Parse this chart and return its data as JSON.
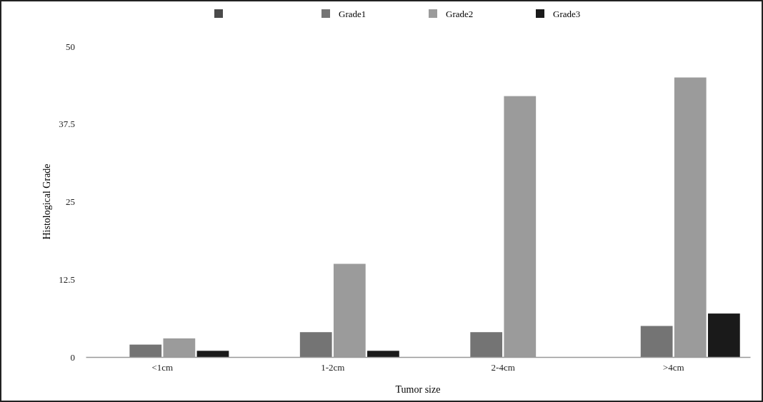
{
  "chart_data": {
    "type": "bar",
    "xlabel": "Tumor size",
    "ylabel": "Histological Grade",
    "categories": [
      "<1cm",
      "1-2cm",
      "2-4cm",
      ">4cm"
    ],
    "series": [
      {
        "color": "#4a4a4a",
        "values": [
          null,
          null,
          null,
          null
        ]
      },
      {
        "name": "Grade1",
        "color": "#747474",
        "values": [
          2,
          4,
          4,
          5
        ]
      },
      {
        "name": "Grade2",
        "color": "#9b9b9b",
        "values": [
          3,
          15,
          42,
          45
        ]
      },
      {
        "name": "Grade3",
        "color": "#1a1a1a",
        "values": [
          1,
          1,
          null,
          7
        ]
      }
    ],
    "ylim": [
      0,
      50
    ],
    "yticks": [
      0,
      12.5,
      25,
      37.5,
      50
    ],
    "grid": false,
    "legend": "top"
  }
}
